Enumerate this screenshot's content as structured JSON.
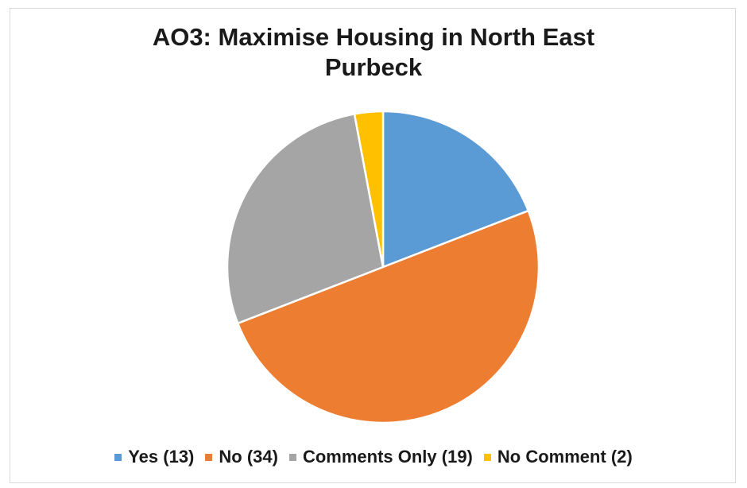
{
  "chart_data": {
    "type": "pie",
    "title_lines": [
      "AO3: Maximise Housing in North East",
      "Purbeck"
    ],
    "slices": [
      {
        "label": "Yes (13)",
        "value": 13,
        "color": "#5b9bd5"
      },
      {
        "label": "No (34)",
        "value": 34,
        "color": "#ed7d31"
      },
      {
        "label": "Comments Only (19)",
        "value": 19,
        "color": "#a5a5a5"
      },
      {
        "label": "No Comment (2)",
        "value": 2,
        "color": "#ffc000"
      }
    ],
    "legend_position": "bottom"
  }
}
